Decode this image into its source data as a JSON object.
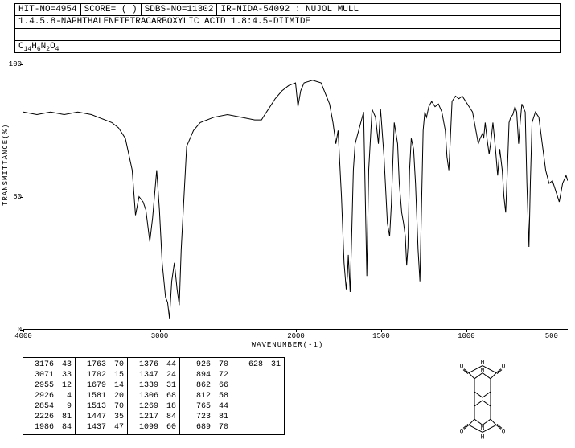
{
  "header": {
    "hit_no": "HIT-NO=4954",
    "score": "SCORE=  (  )",
    "sdbs_no": "SDBS-NO=11302",
    "ir_info": "IR-NIDA-54092 : NUJOL MULL"
  },
  "compound_name": "1.4.5.8-NAPHTHALENETETRACARBOXYLIC ACID 1.8:4.5-DIIMIDE",
  "formula_parts": [
    "C",
    "14",
    "H",
    "6",
    "N",
    "2",
    "O",
    "4"
  ],
  "chart": {
    "type": "line",
    "ylabel": "TRANSMITTANCE(%)",
    "xlabel": "WAVENUMBER(-1)",
    "ylim": [
      0,
      100
    ],
    "xlim": [
      4000,
      400
    ],
    "yticks": [
      0,
      50,
      100
    ],
    "xticks": [
      4000,
      3000,
      2000,
      1500,
      1000,
      500
    ],
    "line_color": "#000000",
    "background_color": "#ffffff",
    "spectrum": [
      [
        4000,
        82
      ],
      [
        3900,
        81
      ],
      [
        3800,
        82
      ],
      [
        3700,
        81
      ],
      [
        3600,
        82
      ],
      [
        3500,
        81
      ],
      [
        3450,
        80
      ],
      [
        3400,
        79
      ],
      [
        3350,
        78
      ],
      [
        3300,
        76
      ],
      [
        3250,
        72
      ],
      [
        3200,
        60
      ],
      [
        3176,
        43
      ],
      [
        3150,
        50
      ],
      [
        3120,
        48
      ],
      [
        3100,
        45
      ],
      [
        3071,
        33
      ],
      [
        3050,
        42
      ],
      [
        3020,
        60
      ],
      [
        3000,
        45
      ],
      [
        2980,
        25
      ],
      [
        2955,
        12
      ],
      [
        2940,
        10
      ],
      [
        2926,
        4
      ],
      [
        2910,
        18
      ],
      [
        2890,
        25
      ],
      [
        2870,
        15
      ],
      [
        2854,
        9
      ],
      [
        2840,
        30
      ],
      [
        2800,
        69
      ],
      [
        2750,
        75
      ],
      [
        2700,
        78
      ],
      [
        2600,
        80
      ],
      [
        2500,
        81
      ],
      [
        2400,
        80
      ],
      [
        2300,
        79
      ],
      [
        2250,
        79
      ],
      [
        2226,
        81
      ],
      [
        2200,
        83
      ],
      [
        2150,
        87
      ],
      [
        2100,
        90
      ],
      [
        2050,
        92
      ],
      [
        2000,
        93
      ],
      [
        1986,
        84
      ],
      [
        1970,
        90
      ],
      [
        1950,
        93
      ],
      [
        1900,
        94
      ],
      [
        1850,
        93
      ],
      [
        1800,
        85
      ],
      [
        1780,
        78
      ],
      [
        1763,
        70
      ],
      [
        1750,
        75
      ],
      [
        1730,
        50
      ],
      [
        1715,
        25
      ],
      [
        1702,
        15
      ],
      [
        1695,
        20
      ],
      [
        1690,
        28
      ],
      [
        1685,
        22
      ],
      [
        1679,
        14
      ],
      [
        1670,
        35
      ],
      [
        1660,
        60
      ],
      [
        1650,
        70
      ],
      [
        1600,
        82
      ],
      [
        1581,
        20
      ],
      [
        1570,
        60
      ],
      [
        1550,
        83
      ],
      [
        1530,
        80
      ],
      [
        1513,
        70
      ],
      [
        1500,
        83
      ],
      [
        1480,
        65
      ],
      [
        1460,
        40
      ],
      [
        1447,
        35
      ],
      [
        1437,
        47
      ],
      [
        1420,
        78
      ],
      [
        1400,
        70
      ],
      [
        1390,
        55
      ],
      [
        1376,
        44
      ],
      [
        1365,
        40
      ],
      [
        1355,
        35
      ],
      [
        1347,
        24
      ],
      [
        1339,
        31
      ],
      [
        1330,
        60
      ],
      [
        1320,
        72
      ],
      [
        1306,
        68
      ],
      [
        1295,
        55
      ],
      [
        1280,
        30
      ],
      [
        1269,
        18
      ],
      [
        1260,
        45
      ],
      [
        1250,
        75
      ],
      [
        1240,
        82
      ],
      [
        1230,
        80
      ],
      [
        1217,
        84
      ],
      [
        1200,
        86
      ],
      [
        1180,
        84
      ],
      [
        1160,
        85
      ],
      [
        1140,
        82
      ],
      [
        1120,
        75
      ],
      [
        1110,
        65
      ],
      [
        1099,
        60
      ],
      [
        1090,
        72
      ],
      [
        1080,
        86
      ],
      [
        1060,
        88
      ],
      [
        1040,
        87
      ],
      [
        1020,
        88
      ],
      [
        1000,
        86
      ],
      [
        980,
        84
      ],
      [
        960,
        82
      ],
      [
        940,
        75
      ],
      [
        926,
        70
      ],
      [
        915,
        72
      ],
      [
        900,
        74
      ],
      [
        894,
        72
      ],
      [
        885,
        78
      ],
      [
        875,
        72
      ],
      [
        862,
        66
      ],
      [
        850,
        72
      ],
      [
        840,
        78
      ],
      [
        825,
        68
      ],
      [
        812,
        58
      ],
      [
        800,
        68
      ],
      [
        785,
        60
      ],
      [
        775,
        50
      ],
      [
        765,
        44
      ],
      [
        755,
        60
      ],
      [
        745,
        78
      ],
      [
        735,
        80
      ],
      [
        723,
        81
      ],
      [
        710,
        84
      ],
      [
        700,
        82
      ],
      [
        689,
        70
      ],
      [
        680,
        78
      ],
      [
        670,
        85
      ],
      [
        650,
        82
      ],
      [
        640,
        55
      ],
      [
        628,
        31
      ],
      [
        620,
        55
      ],
      [
        610,
        78
      ],
      [
        590,
        82
      ],
      [
        570,
        80
      ],
      [
        550,
        70
      ],
      [
        530,
        60
      ],
      [
        510,
        55
      ],
      [
        490,
        56
      ],
      [
        470,
        52
      ],
      [
        450,
        48
      ],
      [
        430,
        55
      ],
      [
        410,
        58
      ],
      [
        400,
        56
      ]
    ]
  },
  "peak_table": {
    "columns": [
      [
        [
          3176,
          43
        ],
        [
          3071,
          33
        ],
        [
          2955,
          12
        ],
        [
          2926,
          4
        ],
        [
          2854,
          9
        ],
        [
          2226,
          81
        ],
        [
          1986,
          84
        ]
      ],
      [
        [
          1763,
          70
        ],
        [
          1702,
          15
        ],
        [
          1679,
          14
        ],
        [
          1581,
          20
        ],
        [
          1513,
          70
        ],
        [
          1447,
          35
        ],
        [
          1437,
          47
        ]
      ],
      [
        [
          1376,
          44
        ],
        [
          1347,
          24
        ],
        [
          1339,
          31
        ],
        [
          1306,
          68
        ],
        [
          1269,
          18
        ],
        [
          1217,
          84
        ],
        [
          1099,
          60
        ]
      ],
      [
        [
          926,
          70
        ],
        [
          894,
          72
        ],
        [
          862,
          66
        ],
        [
          812,
          58
        ],
        [
          765,
          44
        ],
        [
          723,
          81
        ],
        [
          689,
          70
        ]
      ],
      [
        [
          628,
          31
        ]
      ]
    ]
  },
  "structure_atoms": [
    "O",
    "H",
    "O",
    "N",
    "N",
    "O",
    "H",
    "O"
  ]
}
